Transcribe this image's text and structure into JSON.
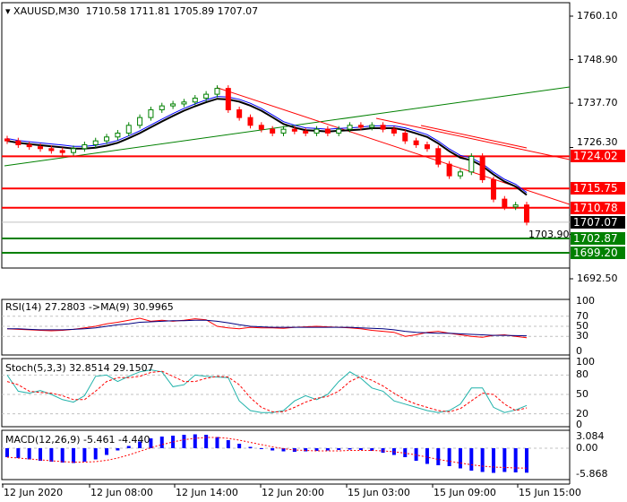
{
  "header": {
    "symbol": "XAUUSD,M30",
    "open": "1710.58",
    "high": "1711.81",
    "low": "1705.89",
    "close": "1707.07"
  },
  "price_axis": [
    "1760.10",
    "1748.90",
    "1737.70",
    "1726.30",
    "1703.90",
    "1692.50"
  ],
  "levels": [
    {
      "label": "1724.02",
      "value": 1724.02,
      "color": "#ff0000"
    },
    {
      "label": "1715.75",
      "value": 1715.75,
      "color": "#ff0000"
    },
    {
      "label": "1710.78",
      "value": 1710.78,
      "color": "#ff0000"
    },
    {
      "label": "1707.07",
      "value": 1707.07,
      "color": "#000000"
    },
    {
      "label": "1702.87",
      "value": 1702.87,
      "color": "#008000"
    },
    {
      "label": "1699.20",
      "value": 1699.2,
      "color": "#008000"
    }
  ],
  "rsi": {
    "title": "RSI(14) 27.2803  ->MA(9) 30.9965",
    "axis": [
      "100",
      "70",
      "50",
      "30",
      "0"
    ]
  },
  "stoch": {
    "title": "Stoch(5,3,3) 32.8514 29.1507",
    "axis": [
      "100",
      "80",
      "50",
      "20",
      "0"
    ]
  },
  "macd": {
    "title": "MACD(12,26,9) -5.461 -4.440",
    "axis": [
      "3.084",
      "0.00",
      "-5.868"
    ]
  },
  "time_axis": [
    "12 Jun 2020",
    "12 Jun 08:00",
    "12 Jun 14:00",
    "12 Jun 20:00",
    "15 Jun 03:00",
    "15 Jun 09:00",
    "15 Jun 15:00"
  ],
  "colors": {
    "bull": "#008000",
    "bear": "#ff0000",
    "rsi": "#ff0000",
    "rsi_ma": "#000080",
    "stoch_k": "#20b2aa",
    "stoch_d": "#ff0000",
    "macd_hist": "#0000ff",
    "macd_signal": "#ff0000"
  },
  "chart_data": {
    "type": "candlestick",
    "ylim": [
      1692.5,
      1760.1
    ],
    "closes": [
      1728,
      1727,
      1726.5,
      1726,
      1725.5,
      1725,
      1726,
      1727,
      1728,
      1729,
      1730,
      1732,
      1734,
      1736,
      1737,
      1737.5,
      1738,
      1739,
      1740,
      1741.5,
      1736,
      1734,
      1732,
      1731,
      1730,
      1731,
      1730.5,
      1730,
      1731,
      1730,
      1731,
      1732,
      1731.5,
      1732,
      1731,
      1730,
      1728,
      1727,
      1726,
      1722,
      1719,
      1720,
      1724,
      1718,
      1713,
      1711,
      1711.5,
      1707.07
    ],
    "rsi": [
      45,
      44,
      43,
      42,
      41,
      42,
      44,
      47,
      50,
      55,
      58,
      62,
      66,
      60,
      62,
      60,
      62,
      65,
      63,
      50,
      47,
      45,
      48,
      47,
      47,
      46,
      48,
      49,
      50,
      49,
      48,
      47,
      45,
      42,
      40,
      38,
      30,
      33,
      38,
      40,
      36,
      33,
      30,
      28,
      32,
      33,
      30,
      27.28
    ],
    "rsi_ma": [
      45,
      45,
      44,
      43,
      43,
      43,
      44,
      45,
      47,
      50,
      53,
      55,
      58,
      59,
      60,
      61,
      61,
      62,
      62,
      60,
      57,
      53,
      50,
      49,
      48,
      48,
      48,
      48,
      48,
      48,
      48,
      48,
      47,
      46,
      45,
      43,
      40,
      38,
      37,
      36,
      36,
      35,
      34,
      33,
      32,
      32,
      31.5,
      31
    ],
    "stoch_k": [
      80,
      55,
      52,
      56,
      50,
      42,
      38,
      48,
      78,
      80,
      70,
      78,
      85,
      88,
      85,
      62,
      65,
      80,
      78,
      77,
      76,
      40,
      25,
      22,
      22,
      25,
      40,
      48,
      42,
      50,
      70,
      85,
      75,
      60,
      55,
      40,
      35,
      30,
      25,
      22,
      25,
      35,
      60,
      60,
      30,
      22,
      26,
      32.85
    ],
    "stoch_d": [
      70,
      65,
      55,
      53,
      52,
      48,
      42,
      42,
      55,
      70,
      76,
      76,
      78,
      84,
      86,
      78,
      70,
      70,
      75,
      78,
      77,
      65,
      45,
      30,
      23,
      23,
      30,
      38,
      44,
      47,
      55,
      70,
      78,
      72,
      63,
      52,
      42,
      35,
      30,
      25,
      23,
      28,
      40,
      52,
      50,
      35,
      25,
      29.15
    ],
    "macd_hist": [
      -2,
      -2.2,
      -2.5,
      -2.8,
      -3,
      -3.2,
      -3.3,
      -3,
      -2.5,
      -1.5,
      -0.5,
      0.5,
      1.5,
      2.2,
      2.6,
      2.8,
      3,
      3.1,
      3,
      2.5,
      1.8,
      1,
      0.3,
      -0.2,
      -0.5,
      -0.7,
      -0.8,
      -0.7,
      -0.6,
      -0.5,
      -0.4,
      -0.3,
      -0.4,
      -0.6,
      -1,
      -1.5,
      -2,
      -2.8,
      -3.5,
      -3.8,
      -4,
      -4.5,
      -5,
      -5.3,
      -5.5,
      -5.3,
      -5.4,
      -5.46
    ],
    "macd_signal": [
      -2,
      -2.2,
      -2.4,
      -2.6,
      -2.8,
      -3,
      -3.1,
      -3.1,
      -3,
      -2.7,
      -2.2,
      -1.5,
      -0.7,
      0.1,
      0.8,
      1.4,
      1.9,
      2.2,
      2.4,
      2.4,
      2.2,
      1.8,
      1.3,
      0.8,
      0.3,
      -0.1,
      -0.4,
      -0.5,
      -0.6,
      -0.6,
      -0.6,
      -0.5,
      -0.5,
      -0.5,
      -0.6,
      -0.8,
      -1.1,
      -1.5,
      -2,
      -2.5,
      -2.9,
      -3.3,
      -3.7,
      -4,
      -4.2,
      -4.3,
      -4.4,
      -4.44
    ]
  }
}
